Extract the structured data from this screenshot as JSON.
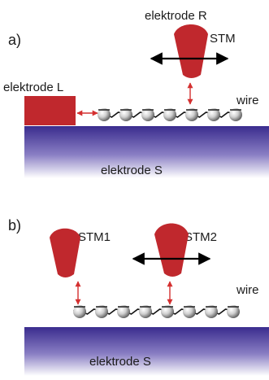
{
  "panels": [
    {
      "panel_label": "a)",
      "electrode_top_label": "elektrode R",
      "tip_labels": [
        "STM"
      ],
      "electrode_left_label": "elektrode L",
      "wire_label": "wire",
      "substrate_label": "elektrode S"
    },
    {
      "panel_label": "b)",
      "tip_labels": [
        "STM1",
        "STM2"
      ],
      "wire_label": "wire",
      "substrate_label": "elektrode S"
    }
  ],
  "colors": {
    "electrode": "#c0282d",
    "arrow": "#d43030",
    "substrate_light": "#ffffff",
    "substrate_dark": "#3a2c8e",
    "sphere_light": "#f4f4f4",
    "sphere_dark": "#555555",
    "line": "#000000"
  }
}
